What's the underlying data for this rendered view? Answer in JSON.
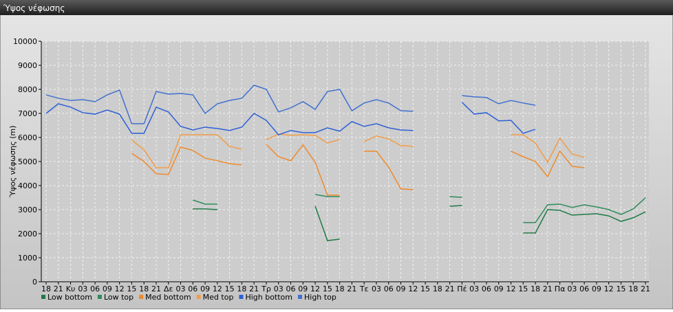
{
  "chart_data": {
    "type": "line",
    "title": "Ύψος νέφωσης",
    "y_label": "Ύψος νέφωσης (m)",
    "categories": [
      "18",
      "21",
      "Κυ",
      "03",
      "06",
      "09",
      "12",
      "15",
      "18",
      "21",
      "Δε",
      "03",
      "06",
      "09",
      "12",
      "15",
      "18",
      "21",
      "Τρ",
      "03",
      "06",
      "09",
      "12",
      "15",
      "18",
      "21",
      "Τε",
      "03",
      "06",
      "09",
      "12",
      "15",
      "18",
      "21",
      "Πέ",
      "03",
      "06",
      "09",
      "12",
      "15",
      "18",
      "21",
      "Πα",
      "03",
      "06",
      "09",
      "12",
      "15",
      "18",
      "21"
    ],
    "ylim": [
      0,
      10000
    ],
    "yticks": [
      0,
      1000,
      2000,
      3000,
      4000,
      5000,
      6000,
      7000,
      8000,
      9000,
      10000
    ],
    "grid": true,
    "series": [
      {
        "name": "Low bottom",
        "color": "#1e7a45",
        "values": [
          null,
          null,
          null,
          null,
          null,
          null,
          null,
          null,
          null,
          null,
          null,
          null,
          3030,
          3030,
          3000,
          null,
          null,
          null,
          null,
          null,
          null,
          null,
          3140,
          1710,
          1770,
          null,
          null,
          null,
          null,
          null,
          null,
          null,
          null,
          3140,
          3170,
          null,
          null,
          null,
          null,
          2030,
          2030,
          3000,
          2970,
          2770,
          2800,
          2830,
          2740,
          2510,
          2660,
          2910
        ]
      },
      {
        "name": "Low top",
        "color": "#2e8b5a",
        "values": [
          null,
          null,
          null,
          null,
          null,
          null,
          null,
          null,
          null,
          null,
          null,
          null,
          3400,
          3230,
          3230,
          null,
          null,
          null,
          null,
          null,
          null,
          null,
          3630,
          3540,
          3540,
          null,
          null,
          null,
          null,
          null,
          null,
          null,
          null,
          3540,
          3510,
          null,
          null,
          null,
          null,
          2460,
          2460,
          3200,
          3230,
          3090,
          3200,
          3110,
          3000,
          2800,
          3030,
          3490
        ]
      },
      {
        "name": "Med bottom",
        "color": "#ee8a2a",
        "values": [
          null,
          null,
          null,
          null,
          null,
          null,
          null,
          5340,
          5000,
          4490,
          4460,
          5600,
          5460,
          5140,
          5030,
          4910,
          4860,
          null,
          5710,
          5200,
          5030,
          5690,
          4970,
          3600,
          3600,
          null,
          5430,
          5430,
          4770,
          3860,
          3830,
          null,
          null,
          null,
          null,
          null,
          null,
          null,
          5430,
          5200,
          5000,
          4370,
          5430,
          4800,
          4740,
          null,
          null,
          null,
          null,
          null
        ]
      },
      {
        "name": "Med top",
        "color": "#f29c46",
        "values": [
          null,
          null,
          null,
          null,
          null,
          null,
          null,
          5890,
          5490,
          4740,
          4740,
          6110,
          6110,
          6110,
          6110,
          5630,
          5510,
          null,
          5910,
          6140,
          6090,
          6110,
          6090,
          5770,
          5910,
          null,
          5830,
          6060,
          5940,
          5660,
          5630,
          null,
          null,
          null,
          null,
          null,
          null,
          null,
          6110,
          6110,
          5770,
          4970,
          5970,
          5310,
          5170,
          null,
          null,
          null,
          null,
          null
        ]
      },
      {
        "name": "High bottom",
        "color": "#2d5fd6",
        "values": [
          7000,
          7400,
          7260,
          7030,
          6970,
          7140,
          6970,
          6170,
          6170,
          7260,
          7060,
          6460,
          6310,
          6430,
          6370,
          6290,
          6430,
          7000,
          6710,
          6110,
          6290,
          6200,
          6200,
          6400,
          6260,
          6660,
          6460,
          6570,
          6400,
          6310,
          6290,
          null,
          null,
          null,
          7460,
          6970,
          7030,
          6690,
          6710,
          6170,
          6340,
          null,
          null,
          null,
          null,
          null,
          null,
          null,
          null,
          null
        ]
      },
      {
        "name": "High top",
        "color": "#4070d0",
        "values": [
          7770,
          7630,
          7540,
          7570,
          7490,
          7770,
          7970,
          6570,
          6570,
          7910,
          7800,
          7830,
          7770,
          7000,
          7400,
          7540,
          7630,
          8170,
          8000,
          7060,
          7230,
          7490,
          7170,
          7910,
          8000,
          7110,
          7430,
          7570,
          7430,
          7110,
          7090,
          null,
          null,
          null,
          7740,
          7690,
          7660,
          7400,
          7540,
          7430,
          7340,
          null,
          null,
          null,
          null,
          null,
          null,
          null,
          null,
          null
        ]
      }
    ]
  }
}
